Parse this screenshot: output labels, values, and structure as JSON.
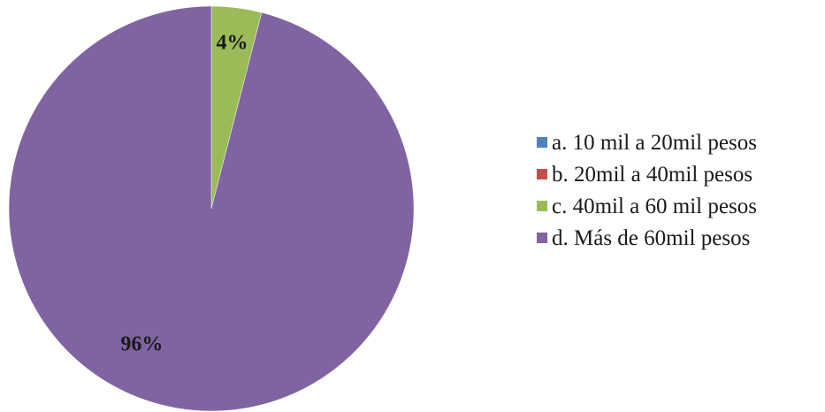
{
  "chart_data": {
    "type": "pie",
    "title": "",
    "categories": [
      "a. 10 mil a 20mil pesos",
      "b. 20mil a 40mil pesos",
      "c. 40mil a 60 mil pesos",
      "d. Más de 60mil pesos"
    ],
    "values": [
      0,
      0,
      4,
      96
    ],
    "data_labels": [
      "",
      "",
      "4%",
      "96%"
    ],
    "colors": [
      "#4f81bd",
      "#c0504d",
      "#9bbb59",
      "#8064a2"
    ],
    "legend_position": "right",
    "start_angle": "top (12 o'clock), clockwise"
  }
}
